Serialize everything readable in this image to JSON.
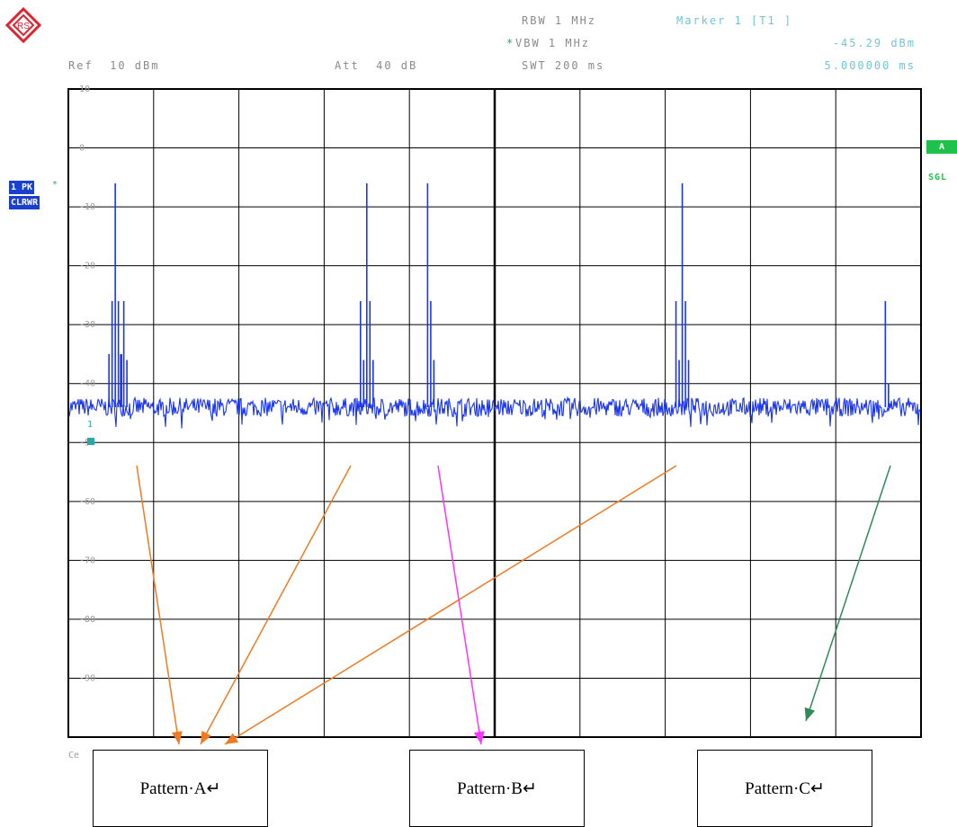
{
  "header": {
    "ref": "Ref  10 dBm",
    "att": "Att  40 dB",
    "rbw": "RBW 1 MHz",
    "vbw": "VBW 1 MHz",
    "swt": "SWT 200 ms",
    "marker_title": "Marker 1 [T1 ]",
    "marker_level": "-45.29 dBm",
    "marker_time": "5.000000 ms"
  },
  "badges": {
    "trace1": "1 PK",
    "trace1_mode": "CLRWR",
    "label_a": "A",
    "sgl": "SGL",
    "marker_number": "1"
  },
  "footer": {
    "center_partial": "Ce"
  },
  "patterns": {
    "a": "Pattern·A↵",
    "b": "Pattern·B↵",
    "c": "Pattern·C↵"
  },
  "colors": {
    "trace": "#1a35f0",
    "orange_arrow": "#f07a20",
    "magenta_arrow": "#ff33ff",
    "green_arrow": "#2e8b57",
    "grid": "#000000",
    "logo": "#e0232f"
  },
  "chart_data": {
    "type": "line",
    "title": "",
    "xlabel": "",
    "ylabel": "",
    "y_ticks": [
      "10",
      "0",
      "-10",
      "-20",
      "-30",
      "-40",
      "-50",
      "-60",
      "-70",
      "-80",
      "-90"
    ],
    "ylim": [
      -100,
      10
    ],
    "x_divisions": 10,
    "grid": true,
    "series": [
      {
        "noise_floor": -44,
        "peaks": [
          {
            "x": 0.55,
            "values": [
              -35,
              -26,
              -6,
              -26,
              -35
            ]
          },
          {
            "x": 0.65,
            "values": [
              -35,
              -26,
              -36
            ]
          },
          {
            "x": 3.5,
            "values": [
              -26,
              -36,
              -6,
              -26,
              -36
            ]
          },
          {
            "x": 4.25,
            "values": [
              -6,
              -26,
              -36
            ]
          },
          {
            "x": 7.2,
            "values": [
              -26,
              -36,
              -6,
              -26,
              -36
            ]
          },
          {
            "x": 9.6,
            "values": [
              -26,
              -40
            ]
          }
        ]
      }
    ],
    "annotations": [
      {
        "from": "Pattern·A↵",
        "peaks": [
          0.55,
          3.35,
          7.05
        ]
      },
      {
        "from": "Pattern·B↵",
        "peaks": [
          4.25
        ]
      },
      {
        "from": "Pattern·C↵",
        "peaks": [
          9.65
        ]
      }
    ]
  }
}
